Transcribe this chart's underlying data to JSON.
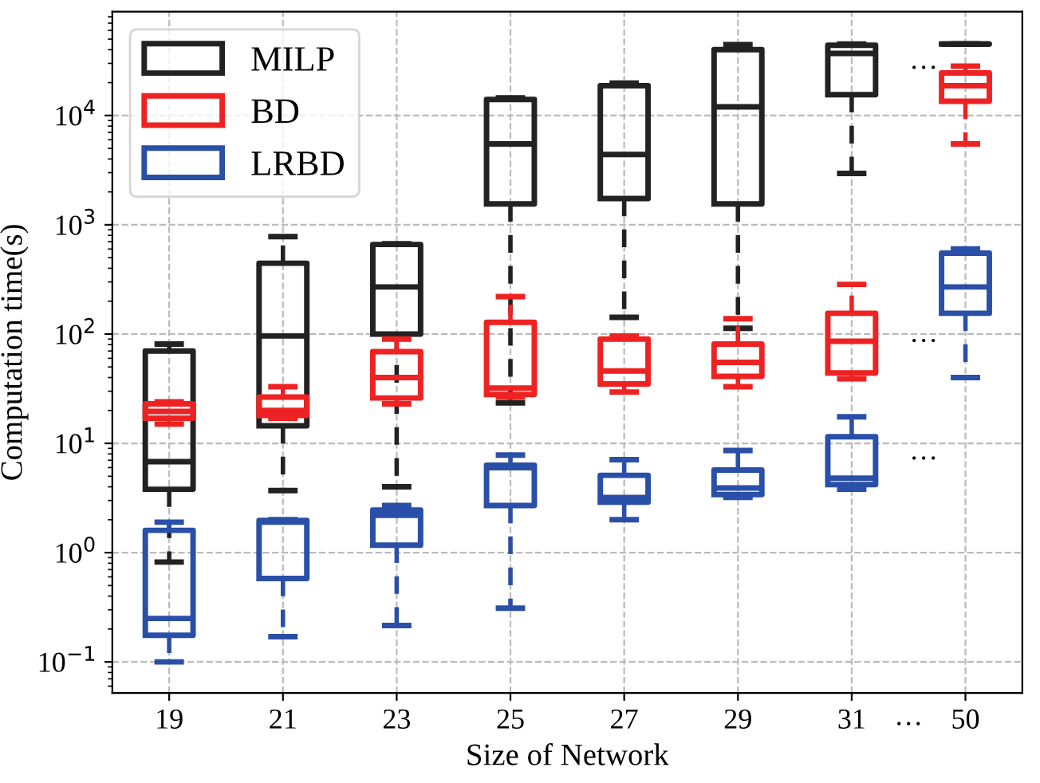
{
  "chart_data": {
    "type": "box",
    "xlabel": "Size of Network",
    "ylabel": "Computation time(s)",
    "categories": [
      "19",
      "21",
      "23",
      "25",
      "27",
      "29",
      "31",
      "50"
    ],
    "log": "y",
    "ylim": [
      0.052,
      89000
    ],
    "yticks": [
      {
        "value": 0.1,
        "label": "10$^{−1}$"
      },
      {
        "value": 1,
        "label": "10$^{0}$"
      },
      {
        "value": 10,
        "label": "10$^{1}$"
      },
      {
        "value": 100,
        "label": "10$^{2}$"
      },
      {
        "value": 1000,
        "label": "10$^{3}$"
      },
      {
        "value": 10000,
        "label": "10$^{4}$"
      }
    ],
    "grid": true,
    "legend": "top left",
    "line_style": "dashed",
    "series": [
      {
        "name": "MILP",
        "color": "#222222",
        "boxes": [
          {
            "low": 0.82,
            "q1": 3.8,
            "median": 6.8,
            "q3": 70,
            "high": 81
          },
          {
            "low": 3.7,
            "q1": 14.5,
            "median": 96,
            "q3": 445,
            "high": 780
          },
          {
            "low": 4.0,
            "q1": 100,
            "median": 270,
            "q3": 660,
            "high": 670
          },
          {
            "low": 23.5,
            "q1": 1550,
            "median": 5500,
            "q3": 14000,
            "high": 14500
          },
          {
            "low": 142,
            "q1": 1740,
            "median": 4400,
            "q3": 18700,
            "high": 19800
          },
          {
            "low": 113,
            "q1": 1550,
            "median": 12000,
            "q3": 40000,
            "high": 44500
          },
          {
            "low": 2950,
            "q1": 15500,
            "median": 37000,
            "q3": 44000,
            "high": 45000
          },
          {
            "low": 45000,
            "q1": 45000,
            "median": 45000,
            "q3": 45000,
            "high": 45000
          }
        ]
      },
      {
        "name": "BD",
        "color": "#ee2222",
        "boxes": [
          {
            "low": 15,
            "q1": 17,
            "median": 19.6,
            "q3": 23,
            "high": 24
          },
          {
            "low": 17,
            "q1": 18,
            "median": 20,
            "q3": 26.5,
            "high": 33
          },
          {
            "low": 23,
            "q1": 26,
            "median": 40,
            "q3": 69,
            "high": 90
          },
          {
            "low": 26.5,
            "q1": 28,
            "median": 32,
            "q3": 128,
            "high": 220
          },
          {
            "low": 29.5,
            "q1": 35,
            "median": 46,
            "q3": 90,
            "high": 96
          },
          {
            "low": 33,
            "q1": 41,
            "median": 55,
            "q3": 81,
            "high": 138
          },
          {
            "low": 39,
            "q1": 44,
            "median": 86,
            "q3": 155,
            "high": 285
          },
          {
            "low": 5500,
            "q1": 13500,
            "median": 18700,
            "q3": 24500,
            "high": 28300
          }
        ]
      },
      {
        "name": "LRBD",
        "color": "#2a4fa8",
        "boxes": [
          {
            "low": 0.1,
            "q1": 0.175,
            "median": 0.25,
            "q3": 1.6,
            "high": 1.9
          },
          {
            "low": 0.17,
            "q1": 0.58,
            "median": 1.9,
            "q3": 1.97,
            "high": 2.0
          },
          {
            "low": 0.215,
            "q1": 1.17,
            "median": 2.2,
            "q3": 2.45,
            "high": 2.7
          },
          {
            "low": 0.31,
            "q1": 2.7,
            "median": 6.0,
            "q3": 6.3,
            "high": 7.8
          },
          {
            "low": 2.0,
            "q1": 2.9,
            "median": 3.2,
            "q3": 5.1,
            "high": 7.1
          },
          {
            "low": 3.2,
            "q1": 3.4,
            "median": 3.9,
            "q3": 5.7,
            "high": 8.6
          },
          {
            "low": 3.8,
            "q1": 4.2,
            "median": 4.8,
            "q3": 11.5,
            "high": 17.5
          },
          {
            "low": 40,
            "q1": 155,
            "median": 270,
            "q3": 550,
            "high": 600
          }
        ]
      }
    ],
    "annotations": [
      "···",
      "···",
      "···",
      "···"
    ]
  }
}
